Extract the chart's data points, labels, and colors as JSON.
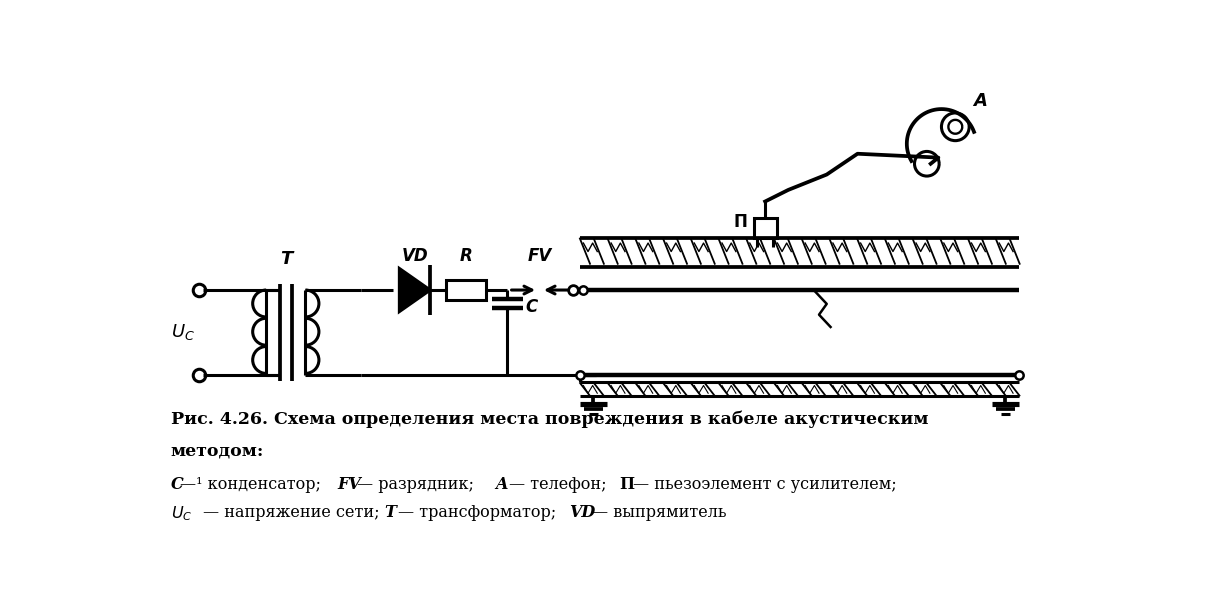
{
  "caption_line1": "Рис. 4.26. Схема определения места повреждения в кабеле акустическим",
  "caption_line2": "методом:",
  "caption_line3": "C —¹ конденсатор;  FV — разрядник;  A — телефон;  П — пьезоэлемент с усилителем;",
  "caption_line4": "UС  — напряжение сети;  T — трансформатор;  VD — выпрямитель",
  "bg_color": "#ffffff",
  "line_color": "#000000",
  "figsize": [
    12.3,
    6.01
  ],
  "dpi": 100
}
